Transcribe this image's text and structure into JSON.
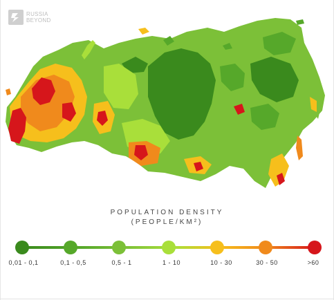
{
  "logo": {
    "line1": "RUSSIA",
    "line2": "BEYOND"
  },
  "legend": {
    "title": "POPULATION DENSITY",
    "subtitle": "(PEOPLE/KM²)",
    "items": [
      {
        "label": "0,01 - 0,1",
        "color": "#3a8a1d"
      },
      {
        "label": "0,1 - 0,5",
        "color": "#56a82a"
      },
      {
        "label": "0,5 - 1",
        "color": "#7cc038"
      },
      {
        "label": "1 - 10",
        "color": "#a9df3a"
      },
      {
        "label": "10 - 30",
        "color": "#f6bf1c"
      },
      {
        "label": "30 - 50",
        "color": "#f08a1c"
      },
      {
        "label": ">60",
        "color": "#d6161b"
      }
    ]
  }
}
